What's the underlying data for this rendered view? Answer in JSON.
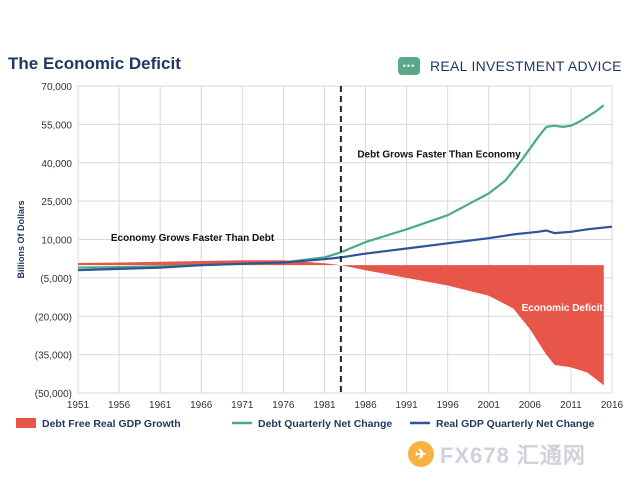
{
  "header": {
    "title": "The Economic Deficit",
    "brand": "REAL INVESTMENT ADVICE"
  },
  "watermark": "FX678 汇通网",
  "colors": {
    "deficit": "#e8564a",
    "debt": "#4aab84",
    "gdp": "#2e5597",
    "title": "#1f3864"
  },
  "chart_data": {
    "type": "line",
    "ylabel": "Billions Of Dollars",
    "xlabel": "",
    "ylim": [
      -50000,
      70000
    ],
    "yticks": [
      70000,
      55000,
      40000,
      25000,
      10000,
      -5000,
      -20000,
      -35000,
      -50000
    ],
    "ytick_labels": [
      "70,000",
      "55,000",
      "40,000",
      "25,000",
      "10,000",
      "(5,000)",
      "(20,000)",
      "(35,000)",
      "(50,000)"
    ],
    "xlim": [
      1951,
      2016
    ],
    "xticks": [
      1951,
      1956,
      1961,
      1966,
      1971,
      1976,
      1981,
      1986,
      1991,
      1996,
      2001,
      2006,
      2011,
      2016
    ],
    "vline_x": 1983,
    "legend_position": "bottom",
    "annotations": [
      {
        "text": "Debt Grows Faster Than Economy",
        "x": 1985,
        "y": 42000
      },
      {
        "text": "Economy Grows Faster Than Debt",
        "x": 1955,
        "y": 9500
      },
      {
        "text": "Economic Deficit",
        "x": 2005,
        "y": -18000
      }
    ],
    "series": [
      {
        "name": "Debt Free Real GDP Growth",
        "kind": "area",
        "x": [
          1951,
          1956,
          1961,
          1966,
          1971,
          1976,
          1981,
          1983,
          1986,
          1991,
          1996,
          2001,
          2004,
          2006,
          2007,
          2008,
          2009,
          2011,
          2013,
          2015
        ],
        "values": [
          800,
          1000,
          1300,
          1600,
          1900,
          1900,
          700,
          0,
          -2000,
          -5000,
          -8000,
          -12000,
          -17000,
          -25000,
          -30000,
          -35000,
          -39000,
          -40000,
          -42000,
          -47000
        ]
      },
      {
        "name": "Debt Quarterly Net Change",
        "kind": "line",
        "x": [
          1951,
          1956,
          1961,
          1966,
          1971,
          1976,
          1981,
          1983,
          1986,
          1991,
          1996,
          2001,
          2003,
          2005,
          2007,
          2008,
          2009,
          2010,
          2011,
          2012,
          2013,
          2014,
          2015
        ],
        "values": [
          -1000,
          -800,
          -500,
          0,
          500,
          1000,
          3000,
          5000,
          9000,
          14000,
          19500,
          28000,
          33000,
          41000,
          50000,
          54000,
          54500,
          54000,
          54500,
          56000,
          58000,
          60000,
          62500
        ]
      },
      {
        "name": "Real GDP Quarterly Net Change",
        "kind": "line",
        "x": [
          1951,
          1956,
          1961,
          1966,
          1971,
          1976,
          1981,
          1983,
          1986,
          1991,
          1996,
          2001,
          2004,
          2007,
          2008,
          2009,
          2011,
          2013,
          2016
        ],
        "values": [
          -2000,
          -1500,
          -1000,
          0,
          500,
          1000,
          2300,
          3000,
          4500,
          6500,
          8500,
          10500,
          12000,
          13000,
          13500,
          12500,
          13000,
          14000,
          15000
        ]
      }
    ]
  }
}
